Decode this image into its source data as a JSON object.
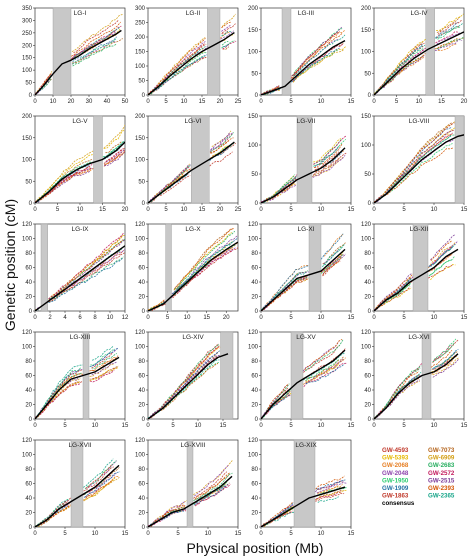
{
  "figure": {
    "ylabel": "Genetic position (cM)",
    "xlabel": "Physical position (Mb)"
  },
  "legend": {
    "entries": [
      {
        "label": "GW-4593",
        "color": "#c0392b"
      },
      {
        "label": "GW-7073",
        "color": "#b5651d"
      },
      {
        "label": "GW-5393",
        "color": "#e6b800"
      },
      {
        "label": "GW-6909",
        "color": "#d4a017"
      },
      {
        "label": "GW-2068",
        "color": "#e67e22"
      },
      {
        "label": "GW-2683",
        "color": "#27ae60"
      },
      {
        "label": "GW-2048",
        "color": "#8e44ad"
      },
      {
        "label": "GW-2572",
        "color": "#c2185b"
      },
      {
        "label": "GW-1950",
        "color": "#2ecc71"
      },
      {
        "label": "GW-2515",
        "color": "#7d3c98"
      },
      {
        "label": "GW-1909",
        "color": "#2471a3"
      },
      {
        "label": "GW-2393",
        "color": "#d35400"
      },
      {
        "label": "GW-1863",
        "color": "#c0392b"
      },
      {
        "label": "GW-2365",
        "color": "#17a589"
      },
      {
        "label": "consensus",
        "color": "#000000"
      }
    ]
  },
  "chart_data": [
    {
      "type": "line",
      "title": "LG-I",
      "xlim": [
        0,
        50
      ],
      "xticks": [
        0,
        10,
        20,
        30,
        40,
        50
      ],
      "ylim": [
        0,
        350
      ],
      "yticks": [
        0,
        50,
        100,
        150,
        200,
        250,
        300,
        350
      ],
      "gap": [
        10,
        20
      ],
      "consensus": {
        "x": [
          0,
          5,
          10,
          15,
          20,
          25,
          30,
          35,
          40,
          45,
          48
        ],
        "y": [
          0,
          40,
          85,
          125,
          140,
          160,
          185,
          205,
          225,
          245,
          260
        ]
      }
    },
    {
      "type": "line",
      "title": "LG-II",
      "xlim": [
        0,
        25
      ],
      "xticks": [
        0,
        5,
        10,
        15,
        20,
        25
      ],
      "ylim": [
        0,
        300
      ],
      "yticks": [
        0,
        50,
        100,
        150,
        200,
        250,
        300
      ],
      "gap": [
        16.5,
        20
      ],
      "consensus": {
        "x": [
          0,
          3,
          6,
          9,
          12,
          15,
          18,
          21,
          24
        ],
        "y": [
          0,
          30,
          65,
          95,
          125,
          150,
          170,
          190,
          215
        ]
      }
    },
    {
      "type": "line",
      "title": "LG-III",
      "xlim": [
        0,
        15
      ],
      "xticks": [
        0,
        5,
        10,
        15
      ],
      "ylim": [
        0,
        200
      ],
      "yticks": [
        0,
        50,
        100,
        150,
        200
      ],
      "gap": [
        3.5,
        5
      ],
      "consensus": {
        "x": [
          0,
          2,
          4,
          6,
          8,
          10,
          12,
          14
        ],
        "y": [
          0,
          10,
          20,
          45,
          70,
          90,
          110,
          125
        ]
      }
    },
    {
      "type": "line",
      "title": "LG-IV",
      "xlim": [
        0,
        20
      ],
      "xticks": [
        0,
        5,
        10,
        15,
        20
      ],
      "ylim": [
        0,
        200
      ],
      "yticks": [
        0,
        50,
        100,
        150,
        200
      ],
      "gap": [
        11.5,
        13.5
      ],
      "consensus": {
        "x": [
          0,
          3,
          6,
          9,
          12,
          15,
          18,
          20
        ],
        "y": [
          0,
          30,
          60,
          85,
          105,
          120,
          135,
          145
        ]
      }
    },
    {
      "type": "line",
      "title": "LG-V",
      "xlim": [
        0,
        20
      ],
      "xticks": [
        0,
        5,
        10,
        15,
        20
      ],
      "ylim": [
        0,
        200
      ],
      "yticks": [
        0,
        50,
        100,
        150,
        200
      ],
      "gap": [
        13,
        15
      ],
      "consensus": {
        "x": [
          0,
          3,
          6,
          9,
          12,
          15,
          18,
          21
        ],
        "y": [
          0,
          25,
          55,
          75,
          90,
          100,
          120,
          150
        ]
      }
    },
    {
      "type": "line",
      "title": "LG-VI",
      "xlim": [
        0,
        25
      ],
      "xticks": [
        0,
        5,
        10,
        15,
        20,
        25
      ],
      "ylim": [
        0,
        200
      ],
      "yticks": [
        0,
        50,
        100,
        150,
        200
      ],
      "gap": [
        12,
        17
      ],
      "consensus": {
        "x": [
          0,
          4,
          8,
          12,
          16,
          20,
          24
        ],
        "y": [
          0,
          25,
          50,
          75,
          95,
          115,
          140
        ]
      }
    },
    {
      "type": "line",
      "title": "LG-VII",
      "xlim": [
        0,
        15
      ],
      "xticks": [
        0,
        5,
        10,
        15
      ],
      "ylim": [
        0,
        150
      ],
      "yticks": [
        0,
        50,
        100,
        150
      ],
      "gap": [
        6,
        8.5
      ],
      "consensus": {
        "x": [
          0,
          2,
          4,
          6,
          8,
          10,
          12,
          14
        ],
        "y": [
          0,
          10,
          25,
          40,
          50,
          60,
          75,
          95
        ]
      }
    },
    {
      "type": "line",
      "title": "LG-VIII",
      "xlim": [
        0,
        15
      ],
      "xticks": [
        0,
        5,
        10,
        15
      ],
      "ylim": [
        0,
        150
      ],
      "yticks": [
        0,
        50,
        100,
        150
      ],
      "gap": [
        13.5,
        15
      ],
      "consensus": {
        "x": [
          0,
          2,
          4,
          6,
          8,
          10,
          12,
          14,
          16
        ],
        "y": [
          0,
          15,
          35,
          55,
          75,
          90,
          105,
          115,
          120
        ]
      }
    },
    {
      "type": "line",
      "title": "LG-IX",
      "xlim": [
        0,
        12
      ],
      "xticks": [
        0,
        2,
        4,
        6,
        8,
        10,
        12
      ],
      "ylim": [
        0,
        120
      ],
      "yticks": [
        0,
        20,
        40,
        60,
        80,
        100,
        120
      ],
      "gap": [
        0.8,
        1.7
      ],
      "consensus": {
        "x": [
          0,
          2,
          4,
          6,
          8,
          10,
          12
        ],
        "y": [
          0,
          15,
          30,
          45,
          60,
          75,
          90
        ]
      }
    },
    {
      "type": "line",
      "title": "LG-X",
      "xlim": [
        0,
        23
      ],
      "xticks": [
        0,
        5,
        10,
        15,
        20
      ],
      "ylim": [
        0,
        120
      ],
      "yticks": [
        0,
        20,
        40,
        60,
        80,
        100,
        120
      ],
      "gap": [
        4.5,
        6
      ],
      "consensus": {
        "x": [
          0,
          4,
          8,
          12,
          16,
          20,
          23
        ],
        "y": [
          0,
          10,
          30,
          50,
          70,
          85,
          95
        ]
      }
    },
    {
      "type": "line",
      "title": "LG-XI",
      "xlim": [
        0,
        15
      ],
      "xticks": [
        0,
        5,
        10,
        15
      ],
      "ylim": [
        0,
        120
      ],
      "yticks": [
        0,
        20,
        40,
        60,
        80,
        100,
        120
      ],
      "gap": [
        8,
        10
      ],
      "consensus": {
        "x": [
          0,
          2,
          4,
          6,
          8,
          10,
          12,
          14
        ],
        "y": [
          0,
          15,
          30,
          45,
          50,
          55,
          70,
          85
        ]
      }
    },
    {
      "type": "line",
      "title": "LG-XII",
      "xlim": [
        0,
        15
      ],
      "xticks": [
        0,
        5,
        10,
        15
      ],
      "ylim": [
        0,
        120
      ],
      "yticks": [
        0,
        20,
        40,
        60,
        80,
        100,
        120
      ],
      "gap": [
        6.5,
        9
      ],
      "consensus": {
        "x": [
          0,
          2,
          4,
          6,
          8,
          10,
          12,
          14
        ],
        "y": [
          0,
          15,
          25,
          40,
          50,
          60,
          75,
          85
        ]
      }
    },
    {
      "type": "line",
      "title": "LG-XIII",
      "xlim": [
        0,
        15
      ],
      "xticks": [
        0,
        5,
        10,
        15
      ],
      "ylim": [
        0,
        120
      ],
      "yticks": [
        0,
        20,
        40,
        60,
        80,
        100,
        120
      ],
      "gap": [
        8,
        9
      ],
      "consensus": {
        "x": [
          0,
          2,
          4,
          6,
          8,
          10,
          12,
          14
        ],
        "y": [
          0,
          20,
          40,
          55,
          60,
          65,
          75,
          85
        ]
      }
    },
    {
      "type": "line",
      "title": "LG-XIV",
      "xlim": [
        0,
        18
      ],
      "xticks": [
        0,
        5,
        10,
        15
      ],
      "ylim": [
        0,
        120
      ],
      "yticks": [
        0,
        20,
        40,
        60,
        80,
        100,
        120
      ],
      "gap": [
        14.5,
        17
      ],
      "consensus": {
        "x": [
          0,
          3,
          6,
          9,
          12,
          14,
          16
        ],
        "y": [
          0,
          15,
          35,
          55,
          75,
          85,
          90
        ]
      }
    },
    {
      "type": "line",
      "title": "LG-XV",
      "xlim": [
        0,
        15
      ],
      "xticks": [
        0,
        5,
        10,
        15
      ],
      "ylim": [
        0,
        120
      ],
      "yticks": [
        0,
        20,
        40,
        60,
        80,
        100,
        120
      ],
      "gap": [
        5,
        7
      ],
      "consensus": {
        "x": [
          0,
          2,
          4,
          6,
          8,
          10,
          12,
          14
        ],
        "y": [
          0,
          20,
          35,
          50,
          60,
          70,
          80,
          95
        ]
      }
    },
    {
      "type": "line",
      "title": "LG-XVI",
      "xlim": [
        0,
        15
      ],
      "xticks": [
        0,
        5,
        10,
        15
      ],
      "ylim": [
        0,
        120
      ],
      "yticks": [
        0,
        20,
        40,
        60,
        80,
        100,
        120
      ],
      "gap": [
        8,
        9.5
      ],
      "consensus": {
        "x": [
          0,
          2,
          4,
          6,
          8,
          10,
          12,
          14
        ],
        "y": [
          0,
          15,
          35,
          50,
          60,
          65,
          75,
          90
        ]
      }
    },
    {
      "type": "line",
      "title": "LG-XVII",
      "xlim": [
        0,
        15
      ],
      "xticks": [
        0,
        5,
        10,
        15
      ],
      "ylim": [
        0,
        120
      ],
      "yticks": [
        0,
        20,
        40,
        60,
        80,
        100,
        120
      ],
      "gap": [
        6,
        8
      ],
      "consensus": {
        "x": [
          0,
          2,
          4,
          6,
          8,
          10,
          12,
          14
        ],
        "y": [
          0,
          10,
          25,
          35,
          45,
          55,
          70,
          85
        ]
      }
    },
    {
      "type": "line",
      "title": "LG-XVIII",
      "xlim": [
        0,
        15
      ],
      "xticks": [
        0,
        5,
        10,
        15
      ],
      "ylim": [
        0,
        120
      ],
      "yticks": [
        0,
        20,
        40,
        60,
        80,
        100,
        120
      ],
      "gap": [
        6.5,
        7.5
      ],
      "consensus": {
        "x": [
          0,
          2,
          4,
          6,
          8,
          10,
          12,
          14
        ],
        "y": [
          0,
          10,
          20,
          25,
          35,
          45,
          55,
          70
        ]
      }
    },
    {
      "type": "line",
      "title": "LG-XIX",
      "xlim": [
        0,
        15
      ],
      "xticks": [
        0,
        5,
        10,
        15
      ],
      "ylim": [
        0,
        120
      ],
      "yticks": [
        0,
        20,
        40,
        60,
        80,
        100,
        120
      ],
      "gap": [
        5.5,
        9
      ],
      "consensus": {
        "x": [
          0,
          2,
          4,
          6,
          8,
          10,
          12,
          14
        ],
        "y": [
          0,
          10,
          20,
          30,
          40,
          45,
          50,
          55
        ]
      }
    }
  ]
}
